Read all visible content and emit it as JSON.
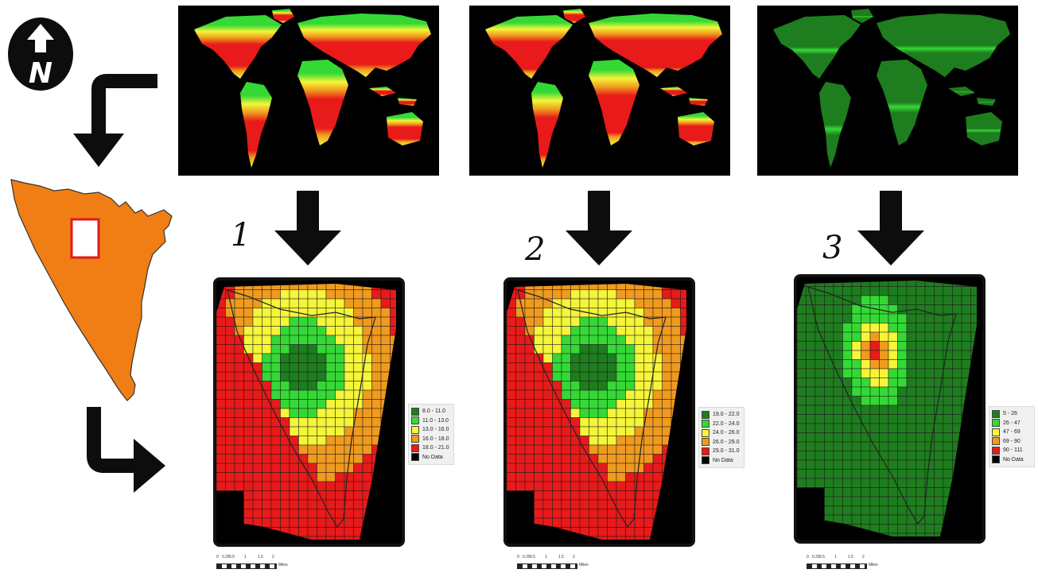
{
  "north_arrow": {
    "letter": "N",
    "icon": "north-arrow-icon"
  },
  "panels": [
    {
      "number": "1",
      "legend": [
        {
          "label": "8.0 - 11.0",
          "color": "#1e7d1e"
        },
        {
          "label": "11.0 - 13.0",
          "color": "#35d935"
        },
        {
          "label": "13.0 - 16.0",
          "color": "#f5f53a"
        },
        {
          "label": "16.0 - 18.0",
          "color": "#f09a1e"
        },
        {
          "label": "18.0 - 21.0",
          "color": "#e81a1a"
        },
        {
          "label": "No Data",
          "color": "#000000"
        }
      ],
      "scale": {
        "ticks": [
          "0",
          "0.25",
          "0.5",
          "1",
          "1.5",
          "2"
        ],
        "unit": "Miles"
      }
    },
    {
      "number": "2",
      "legend": [
        {
          "label": "19.0 - 22.0",
          "color": "#1e7d1e"
        },
        {
          "label": "22.0 - 24.0",
          "color": "#35d935"
        },
        {
          "label": "24.0 - 26.0",
          "color": "#f5f53a"
        },
        {
          "label": "26.0 - 29.0",
          "color": "#f09a1e"
        },
        {
          "label": "29.0 - 31.0",
          "color": "#e81a1a"
        },
        {
          "label": "No Data",
          "color": "#000000"
        }
      ],
      "scale": {
        "ticks": [
          "0",
          "0.25",
          "0.5",
          "1",
          "1.5",
          "2"
        ],
        "unit": "Miles"
      }
    },
    {
      "number": "3",
      "legend": [
        {
          "label": "5 - 26",
          "color": "#1e7d1e"
        },
        {
          "label": "26 - 47",
          "color": "#35d935"
        },
        {
          "label": "47 - 69",
          "color": "#f5f53a"
        },
        {
          "label": "69 - 90",
          "color": "#f09a1e"
        },
        {
          "label": "90 - 111",
          "color": "#e81a1a"
        },
        {
          "label": "No Data",
          "color": "#000000"
        }
      ],
      "scale": {
        "ticks": [
          "0",
          "0.25",
          "0.5",
          "1",
          "1.5",
          "2"
        ],
        "unit": "Miles"
      }
    }
  ],
  "colors": {
    "dark_green": "#1e7d1e",
    "green": "#35d935",
    "yellow": "#f5f53a",
    "orange": "#f09a1e",
    "red": "#e81a1a",
    "region_fill": "#f07e14",
    "inset_box": "#e01a1a"
  }
}
